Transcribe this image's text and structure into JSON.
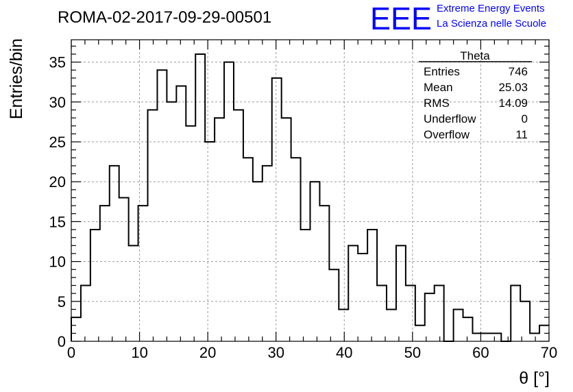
{
  "run_title": "ROMA-02-2017-09-29-00501",
  "logo": {
    "text": "EEE",
    "line1": "Extreme Energy Events",
    "line2": "La Scienza nelle Scuole",
    "color": "#0000ff"
  },
  "stats": {
    "title": "Theta",
    "rows": [
      {
        "label": "Entries",
        "value": "746"
      },
      {
        "label": "Mean",
        "value": "25.03"
      },
      {
        "label": "RMS",
        "value": "14.09"
      },
      {
        "label": "Underflow",
        "value": "0"
      },
      {
        "label": "Overflow",
        "value": "11"
      }
    ]
  },
  "chart_data": {
    "type": "bar",
    "style": "step histogram",
    "title": "ROMA-02-2017-09-29-00501",
    "xlabel": "θ [°]",
    "ylabel": "Entries/bin",
    "xlim": [
      0,
      70
    ],
    "ylim": [
      0,
      37.8
    ],
    "bin_width": 1.4,
    "bin_edges_start": 0,
    "values": [
      3,
      7,
      14,
      17,
      22,
      18,
      12,
      17,
      29,
      34,
      30,
      32,
      27,
      36,
      25,
      28,
      35,
      29,
      23,
      20,
      22,
      33,
      28,
      23,
      14,
      20,
      17,
      9,
      4,
      12,
      11,
      14,
      7,
      4,
      12,
      7,
      2,
      6,
      7,
      0,
      4,
      3,
      1,
      1,
      1,
      0,
      7,
      5,
      1,
      2
    ],
    "xticks": [
      0,
      10,
      20,
      30,
      40,
      50,
      60,
      70
    ],
    "yticks": [
      0,
      5,
      10,
      15,
      20,
      25,
      30,
      35
    ],
    "grid": true,
    "line_color": "#000000"
  }
}
